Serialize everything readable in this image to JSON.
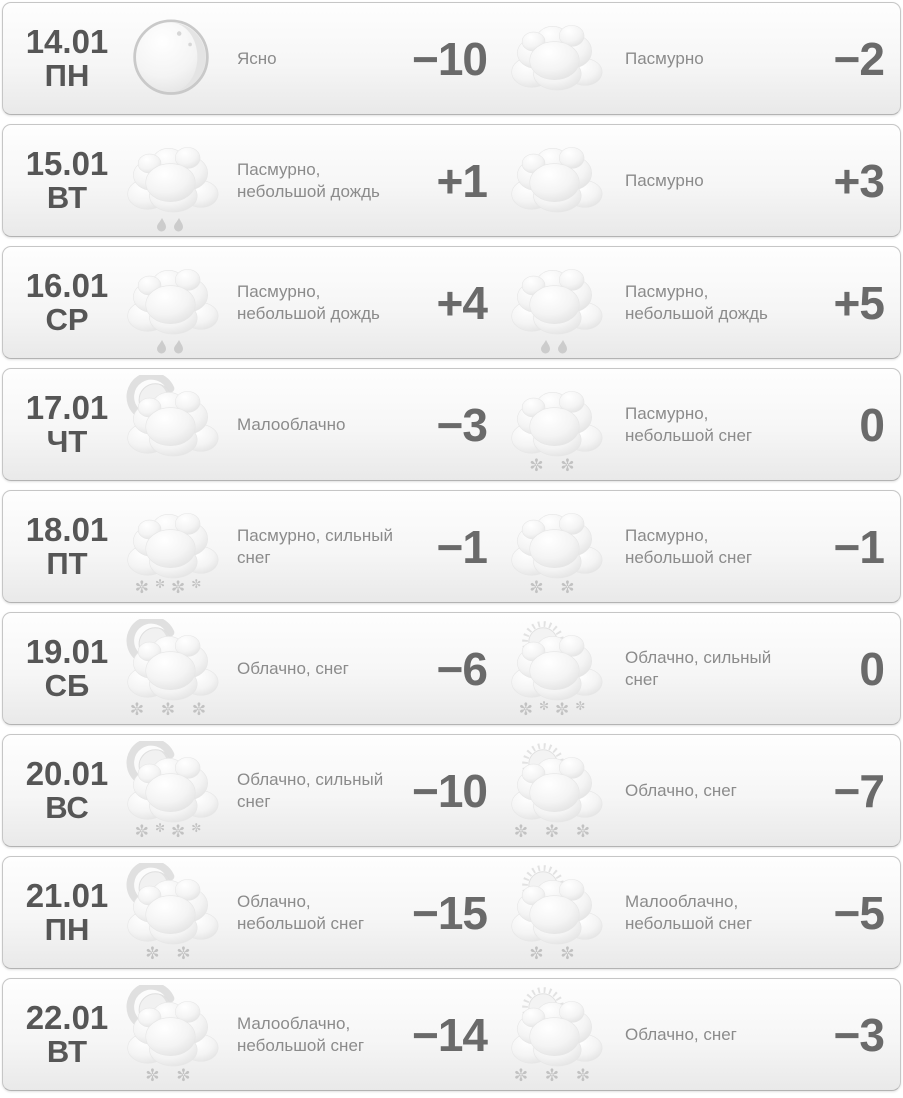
{
  "colors": {
    "card_border": "#c6c6c6",
    "date_text": "#565656",
    "temp_text": "#6a6a6a",
    "desc_text": "#8b8b8b",
    "flake_gray": "#c2c2c2"
  },
  "forecast": {
    "rows": [
      {
        "date": "14.01",
        "weekday": "ПН",
        "night": {
          "icon": "moon-icon",
          "base": "moon",
          "precip": "none",
          "desc": "Ясно",
          "temp": "−10"
        },
        "day": {
          "icon": "cloud-icon",
          "base": "cloud",
          "precip": "none",
          "desc": "Пасмурно",
          "temp": "−2"
        }
      },
      {
        "date": "15.01",
        "weekday": "ВТ",
        "night": {
          "icon": "cloud-rain-icon",
          "base": "cloud",
          "precip": "rain-2",
          "desc": "Пасмурно, небольшой дождь",
          "temp": "+1"
        },
        "day": {
          "icon": "cloud-icon",
          "base": "cloud",
          "precip": "none",
          "desc": "Пасмурно",
          "temp": "+3"
        }
      },
      {
        "date": "16.01",
        "weekday": "СР",
        "night": {
          "icon": "cloud-rain-icon",
          "base": "cloud",
          "precip": "rain-2",
          "desc": "Пасмурно, небольшой дождь",
          "temp": "+4"
        },
        "day": {
          "icon": "cloud-rain-icon",
          "base": "cloud",
          "precip": "rain-2",
          "desc": "Пасмурно, небольшой дождь",
          "temp": "+5"
        }
      },
      {
        "date": "17.01",
        "weekday": "ЧТ",
        "night": {
          "icon": "moon-cloud-icon",
          "base": "moon-cloud",
          "precip": "none",
          "desc": "Малооблачно",
          "temp": "−3"
        },
        "day": {
          "icon": "cloud-snow-icon",
          "base": "cloud",
          "precip": "snow-2",
          "desc": "Пасмурно, небольшой снег",
          "temp": "0"
        }
      },
      {
        "date": "18.01",
        "weekday": "ПТ",
        "night": {
          "icon": "cloud-heavy-snow-icon",
          "base": "cloud",
          "precip": "snow-4",
          "desc": "Пасмурно, сильный снег",
          "temp": "−1"
        },
        "day": {
          "icon": "cloud-snow-icon",
          "base": "cloud",
          "precip": "snow-2",
          "desc": "Пасмурно, небольшой снег",
          "temp": "−1"
        }
      },
      {
        "date": "19.01",
        "weekday": "СБ",
        "night": {
          "icon": "moon-cloud-snow-icon",
          "base": "moon-cloud",
          "precip": "snow-3",
          "desc": "Облачно, снег",
          "temp": "−6"
        },
        "day": {
          "icon": "sun-cloud-heavy-snow-icon",
          "base": "sun-cloud",
          "precip": "snow-4",
          "desc": "Облачно, сильный снег",
          "temp": "0"
        }
      },
      {
        "date": "20.01",
        "weekday": "ВС",
        "night": {
          "icon": "moon-cloud-heavy-snow-icon",
          "base": "moon-cloud",
          "precip": "snow-4",
          "desc": "Облачно, сильный снег",
          "temp": "−10"
        },
        "day": {
          "icon": "sun-cloud-snow-icon",
          "base": "sun-cloud",
          "precip": "snow-3",
          "desc": "Облачно, снег",
          "temp": "−7"
        }
      },
      {
        "date": "21.01",
        "weekday": "ПН",
        "night": {
          "icon": "moon-cloud-snow-icon",
          "base": "moon-cloud",
          "precip": "snow-2",
          "desc": "Облачно, небольшой снег",
          "temp": "−15"
        },
        "day": {
          "icon": "sun-cloud-snow-icon",
          "base": "sun-cloud",
          "precip": "snow-2",
          "desc": "Малооблачно, небольшой снег",
          "temp": "−5"
        }
      },
      {
        "date": "22.01",
        "weekday": "ВТ",
        "night": {
          "icon": "moon-cloud-snow-icon",
          "base": "moon-cloud",
          "precip": "snow-2",
          "desc": "Малооблачно, небольшой снег",
          "temp": "−14"
        },
        "day": {
          "icon": "sun-cloud-snow-icon",
          "base": "sun-cloud",
          "precip": "snow-3",
          "desc": "Облачно, снег",
          "temp": "−3"
        }
      }
    ]
  }
}
